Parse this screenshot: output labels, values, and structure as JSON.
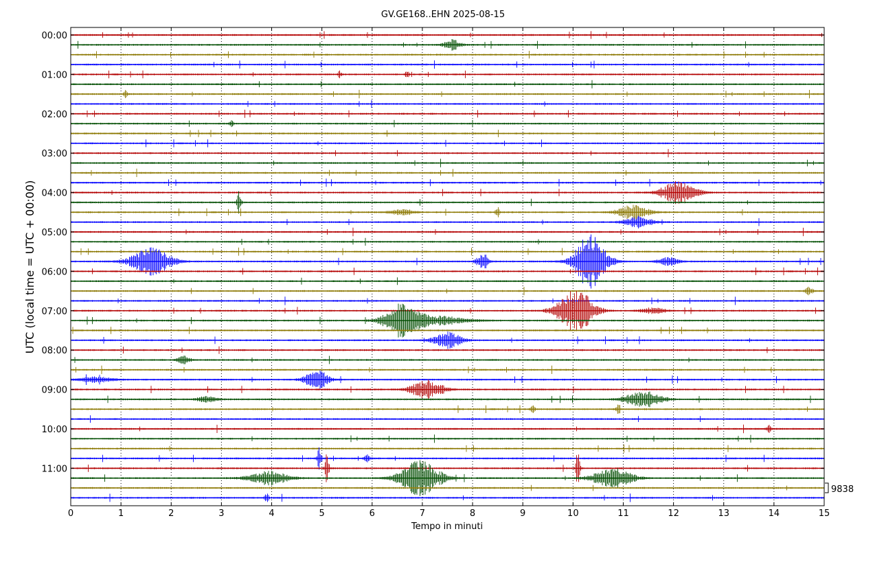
{
  "title": "GV.GE168..EHN 2025-08-15",
  "xlabel": "Tempo in minuti",
  "ylabel": "UTC (local time = UTC + 00:00)",
  "scale_label": "9838",
  "colors": [
    "#b30000",
    "#004d00",
    "#8b7700",
    "#0000ff"
  ],
  "chart_data": {
    "type": "helicorder",
    "xlim": [
      0,
      15
    ],
    "x_ticks": [
      0,
      1,
      2,
      3,
      4,
      5,
      6,
      7,
      8,
      9,
      10,
      11,
      12,
      13,
      14,
      15
    ],
    "y_tick_labels": [
      "00:00",
      "01:00",
      "02:00",
      "03:00",
      "04:00",
      "05:00",
      "06:00",
      "07:00",
      "08:00",
      "09:00",
      "10:00",
      "11:00"
    ],
    "trace_interval_minutes": 15,
    "trace_count": 48,
    "grid_x": true,
    "events": [
      {
        "trace": 1,
        "minute": 7.6,
        "amplitude": 8,
        "duration": 0.4
      },
      {
        "trace": 4,
        "minute": 5.35,
        "amplitude": 5,
        "duration": 0.1
      },
      {
        "trace": 4,
        "minute": 6.7,
        "amplitude": 6,
        "duration": 0.1
      },
      {
        "trace": 6,
        "minute": 1.1,
        "amplitude": 6,
        "duration": 0.1
      },
      {
        "trace": 9,
        "minute": 3.2,
        "amplitude": 5,
        "duration": 0.1
      },
      {
        "trace": 16,
        "minute": 12.1,
        "amplitude": 16,
        "duration": 0.9
      },
      {
        "trace": 17,
        "minute": 3.35,
        "amplitude": 20,
        "duration": 0.1
      },
      {
        "trace": 18,
        "minute": 11.2,
        "amplitude": 10,
        "duration": 0.8
      },
      {
        "trace": 18,
        "minute": 8.5,
        "amplitude": 10,
        "duration": 0.1
      },
      {
        "trace": 18,
        "minute": 6.6,
        "amplitude": 4,
        "duration": 0.6
      },
      {
        "trace": 19,
        "minute": 11.3,
        "amplitude": 8,
        "duration": 0.7
      },
      {
        "trace": 23,
        "minute": 1.6,
        "amplitude": 20,
        "duration": 1.0
      },
      {
        "trace": 23,
        "minute": 10.35,
        "amplitude": 40,
        "duration": 0.8
      },
      {
        "trace": 23,
        "minute": 8.2,
        "amplitude": 12,
        "duration": 0.3
      },
      {
        "trace": 23,
        "minute": 11.9,
        "amplitude": 6,
        "duration": 0.5
      },
      {
        "trace": 26,
        "minute": 14.7,
        "amplitude": 6,
        "duration": 0.2
      },
      {
        "trace": 28,
        "minute": 10.05,
        "amplitude": 32,
        "duration": 0.9
      },
      {
        "trace": 28,
        "minute": 11.6,
        "amplitude": 4,
        "duration": 0.6
      },
      {
        "trace": 29,
        "minute": 6.6,
        "amplitude": 24,
        "duration": 0.9
      },
      {
        "trace": 29,
        "minute": 7.3,
        "amplitude": 6,
        "duration": 1.5
      },
      {
        "trace": 31,
        "minute": 7.5,
        "amplitude": 12,
        "duration": 0.7
      },
      {
        "trace": 33,
        "minute": 2.25,
        "amplitude": 6,
        "duration": 0.3
      },
      {
        "trace": 35,
        "minute": 4.9,
        "amplitude": 14,
        "duration": 0.6
      },
      {
        "trace": 35,
        "minute": 0.5,
        "amplitude": 4,
        "duration": 0.8
      },
      {
        "trace": 36,
        "minute": 7.1,
        "amplitude": 14,
        "duration": 0.8
      },
      {
        "trace": 37,
        "minute": 11.4,
        "amplitude": 12,
        "duration": 0.9
      },
      {
        "trace": 37,
        "minute": 2.7,
        "amplitude": 4,
        "duration": 0.5
      },
      {
        "trace": 38,
        "minute": 9.2,
        "amplitude": 10,
        "duration": 0.1
      },
      {
        "trace": 38,
        "minute": 10.9,
        "amplitude": 10,
        "duration": 0.1
      },
      {
        "trace": 40,
        "minute": 13.9,
        "amplitude": 8,
        "duration": 0.1
      },
      {
        "trace": 43,
        "minute": 4.95,
        "amplitude": 18,
        "duration": 0.1
      },
      {
        "trace": 43,
        "minute": 5.9,
        "amplitude": 6,
        "duration": 0.15
      },
      {
        "trace": 44,
        "minute": 5.1,
        "amplitude": 24,
        "duration": 0.1
      },
      {
        "trace": 44,
        "minute": 10.1,
        "amplitude": 32,
        "duration": 0.1
      },
      {
        "trace": 45,
        "minute": 3.95,
        "amplitude": 10,
        "duration": 1.0
      },
      {
        "trace": 45,
        "minute": 6.95,
        "amplitude": 26,
        "duration": 1.0
      },
      {
        "trace": 45,
        "minute": 10.8,
        "amplitude": 14,
        "duration": 1.0
      },
      {
        "trace": 47,
        "minute": 3.9,
        "amplitude": 8,
        "duration": 0.1
      }
    ]
  }
}
